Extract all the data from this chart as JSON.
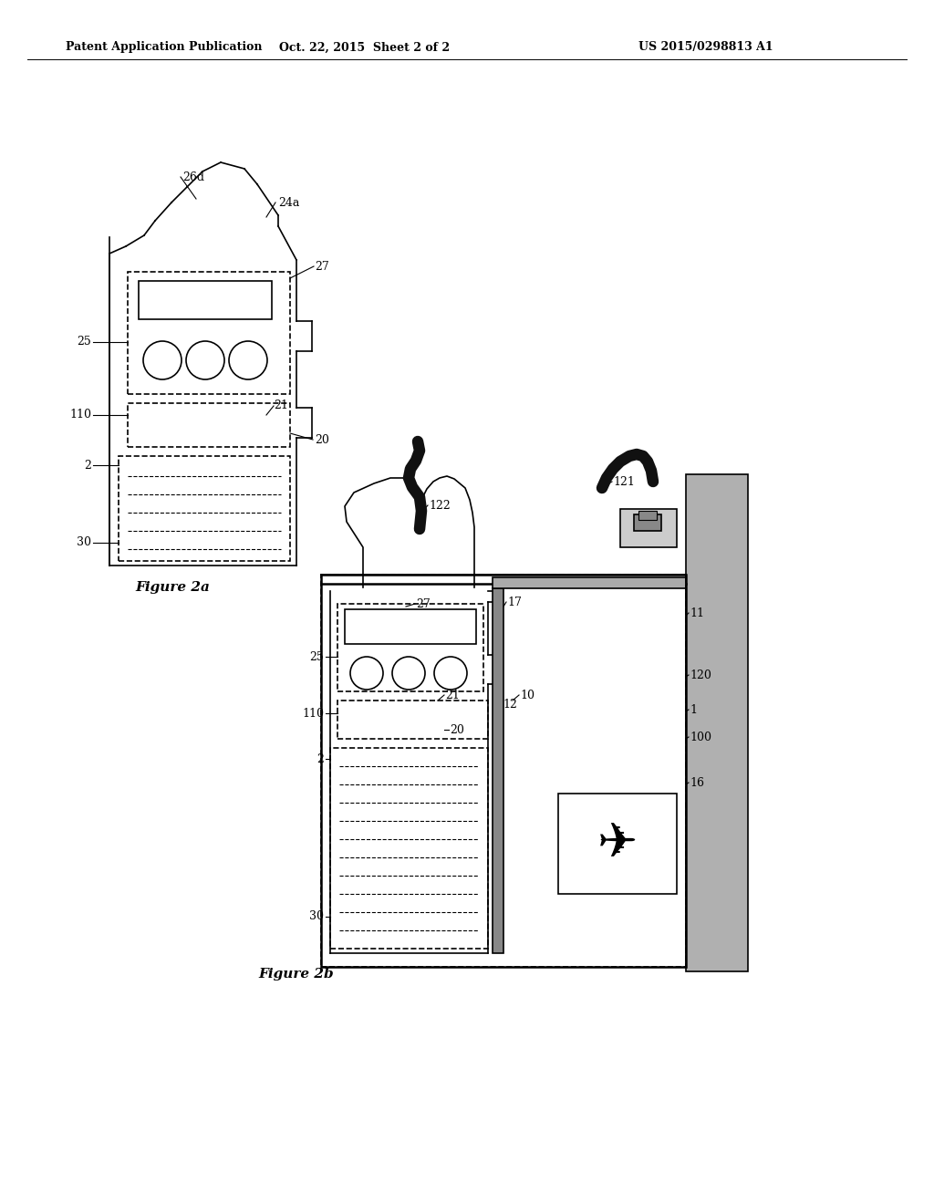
{
  "header_left": "Patent Application Publication",
  "header_mid": "Oct. 22, 2015  Sheet 2 of 2",
  "header_right": "US 2015/0298813 A1",
  "bg_color": "#ffffff",
  "line_color": "#000000",
  "fig2a_label": "Figure 2a",
  "fig2b_label": "Figure 2b"
}
